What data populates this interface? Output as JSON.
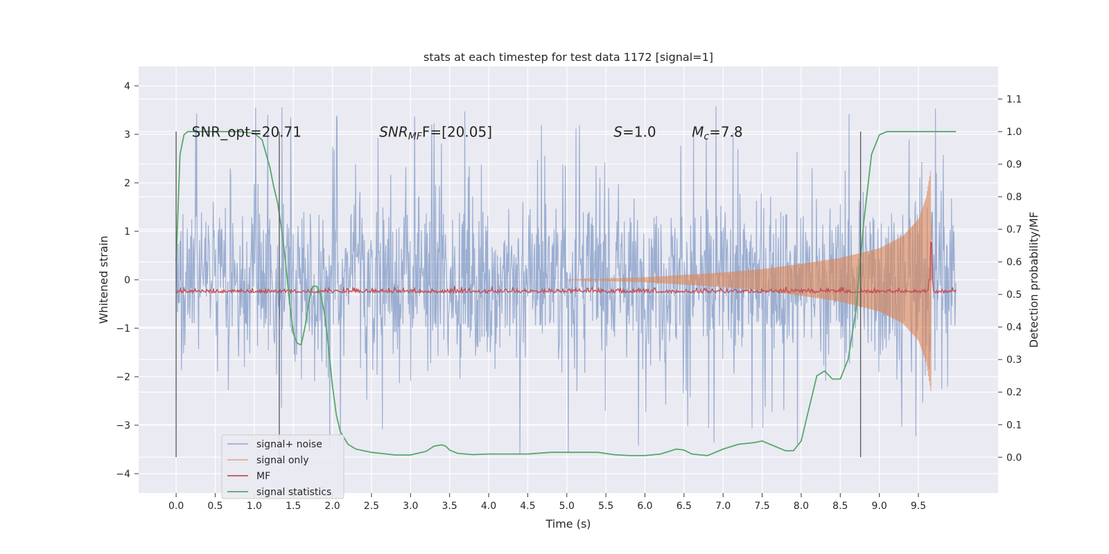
{
  "chart_data": {
    "type": "line",
    "title": "stats at each timestep for test data 1172 [signal=1]",
    "xlabel": "Time (s)",
    "ylabel": "Whitened strain",
    "y2label": "Detection probability/MF",
    "xlim": [
      -0.48,
      10.52
    ],
    "ylim": [
      -4.4,
      4.4
    ],
    "y2lim": [
      -0.11,
      1.2
    ],
    "x_ticks": [
      "0.0",
      "0.5",
      "1.0",
      "1.5",
      "2.0",
      "2.5",
      "3.0",
      "3.5",
      "4.0",
      "4.5",
      "5.0",
      "5.5",
      "6.0",
      "6.5",
      "7.0",
      "7.5",
      "8.0",
      "8.5",
      "9.0",
      "9.5"
    ],
    "x_tick_values": [
      0,
      0.5,
      1,
      1.5,
      2,
      2.5,
      3,
      3.5,
      4,
      4.5,
      5,
      5.5,
      6,
      6.5,
      7,
      7.5,
      8,
      8.5,
      9,
      9.5
    ],
    "y_ticks": [
      "−4",
      "−3",
      "−2",
      "−1",
      "0",
      "1",
      "2",
      "3",
      "4"
    ],
    "y_tick_values": [
      -4,
      -3,
      -2,
      -1,
      0,
      1,
      2,
      3,
      4
    ],
    "y2_ticks": [
      "0.0",
      "0.1",
      "0.2",
      "0.3",
      "0.4",
      "0.5",
      "0.6",
      "0.7",
      "0.8",
      "0.9",
      "1.0",
      "1.1"
    ],
    "y2_tick_values": [
      0,
      0.1,
      0.2,
      0.3,
      0.4,
      0.5,
      0.6,
      0.7,
      0.8,
      0.9,
      1.0,
      1.1
    ],
    "grid": true,
    "legend_position": "lower-left",
    "annotations": [
      {
        "text": "SNR_opt=20.71",
        "x": 0.2,
        "y2": 0.99
      },
      {
        "base": "SNR",
        "sub": "MF",
        "rest": "F=[20.05]",
        "x": 2.6,
        "y2": 0.99
      },
      {
        "base": "S",
        "sub": "",
        "rest": "=1.0",
        "x": 5.6,
        "y2": 0.99
      },
      {
        "base": "M",
        "sub": "c",
        "rest": "=7.8",
        "x": 6.6,
        "y2": 0.99
      }
    ],
    "vlines": [
      0.0,
      1.32,
      8.76
    ],
    "vline_y2_range": [
      0.0,
      1.0
    ],
    "series": [
      {
        "name": "signal+ noise",
        "color": "#4c72b0",
        "style": "noisy-band",
        "x_range": [
          0.0,
          9.98
        ],
        "approx_envelope": [
          [
            0.0,
            -1.4,
            1.4
          ],
          [
            1.0,
            -1.4,
            1.4
          ],
          [
            5.0,
            -1.4,
            1.4
          ],
          [
            8.0,
            -1.4,
            1.4
          ],
          [
            9.0,
            -1.5,
            1.5
          ],
          [
            9.66,
            -1.6,
            1.6
          ],
          [
            9.98,
            -1.4,
            1.4
          ]
        ],
        "peak_range": [
          -3.9,
          4.05
        ]
      },
      {
        "name": "signal only",
        "color": "#dd8452",
        "style": "chirp",
        "chirp_envelope": [
          [
            5.0,
            0.0
          ],
          [
            6.0,
            0.05
          ],
          [
            7.0,
            0.15
          ],
          [
            7.5,
            0.22
          ],
          [
            8.0,
            0.33
          ],
          [
            8.5,
            0.45
          ],
          [
            9.0,
            0.65
          ],
          [
            9.3,
            0.9
          ],
          [
            9.5,
            1.25
          ],
          [
            9.6,
            1.7
          ],
          [
            9.66,
            2.3
          ],
          [
            9.67,
            0.0
          ]
        ]
      },
      {
        "name": "MF",
        "color": "#c44e52",
        "style": "noisy-line",
        "axis": "y2",
        "baseline": 0.505,
        "spike": {
          "x": 9.66,
          "y2": 0.66
        }
      },
      {
        "name": "signal statistics",
        "color": "#55a868",
        "axis": "y2",
        "x": [
          0.0,
          0.05,
          0.1,
          0.15,
          0.2,
          0.3,
          0.5,
          0.8,
          1.0,
          1.1,
          1.2,
          1.25,
          1.3,
          1.35,
          1.4,
          1.45,
          1.5,
          1.55,
          1.6,
          1.65,
          1.7,
          1.75,
          1.8,
          1.85,
          1.9,
          1.95,
          2.0,
          2.05,
          2.1,
          2.2,
          2.3,
          2.5,
          2.8,
          3.0,
          3.2,
          3.3,
          3.4,
          3.45,
          3.5,
          3.6,
          3.8,
          4.0,
          4.5,
          4.8,
          5.0,
          5.2,
          5.4,
          5.6,
          5.8,
          6.0,
          6.2,
          6.4,
          6.5,
          6.6,
          6.8,
          7.0,
          7.2,
          7.4,
          7.5,
          7.6,
          7.8,
          7.9,
          8.0,
          8.1,
          8.2,
          8.3,
          8.4,
          8.5,
          8.6,
          8.7,
          8.8,
          8.9,
          9.0,
          9.1,
          9.2,
          9.3,
          9.5,
          9.7,
          9.98
        ],
        "values": [
          0.6,
          0.93,
          0.99,
          1.0,
          1.0,
          1.0,
          1.0,
          1.0,
          0.995,
          0.975,
          0.89,
          0.83,
          0.78,
          0.7,
          0.6,
          0.48,
          0.38,
          0.35,
          0.345,
          0.4,
          0.48,
          0.525,
          0.525,
          0.5,
          0.44,
          0.34,
          0.22,
          0.13,
          0.08,
          0.04,
          0.025,
          0.015,
          0.007,
          0.007,
          0.018,
          0.034,
          0.038,
          0.034,
          0.022,
          0.012,
          0.008,
          0.01,
          0.01,
          0.015,
          0.015,
          0.015,
          0.015,
          0.008,
          0.005,
          0.005,
          0.01,
          0.025,
          0.022,
          0.01,
          0.005,
          0.025,
          0.04,
          0.045,
          0.05,
          0.04,
          0.02,
          0.02,
          0.05,
          0.15,
          0.25,
          0.265,
          0.24,
          0.24,
          0.3,
          0.45,
          0.72,
          0.93,
          0.99,
          1.0,
          1.0,
          1.0,
          1.0,
          1.0,
          1.0
        ]
      }
    ]
  }
}
